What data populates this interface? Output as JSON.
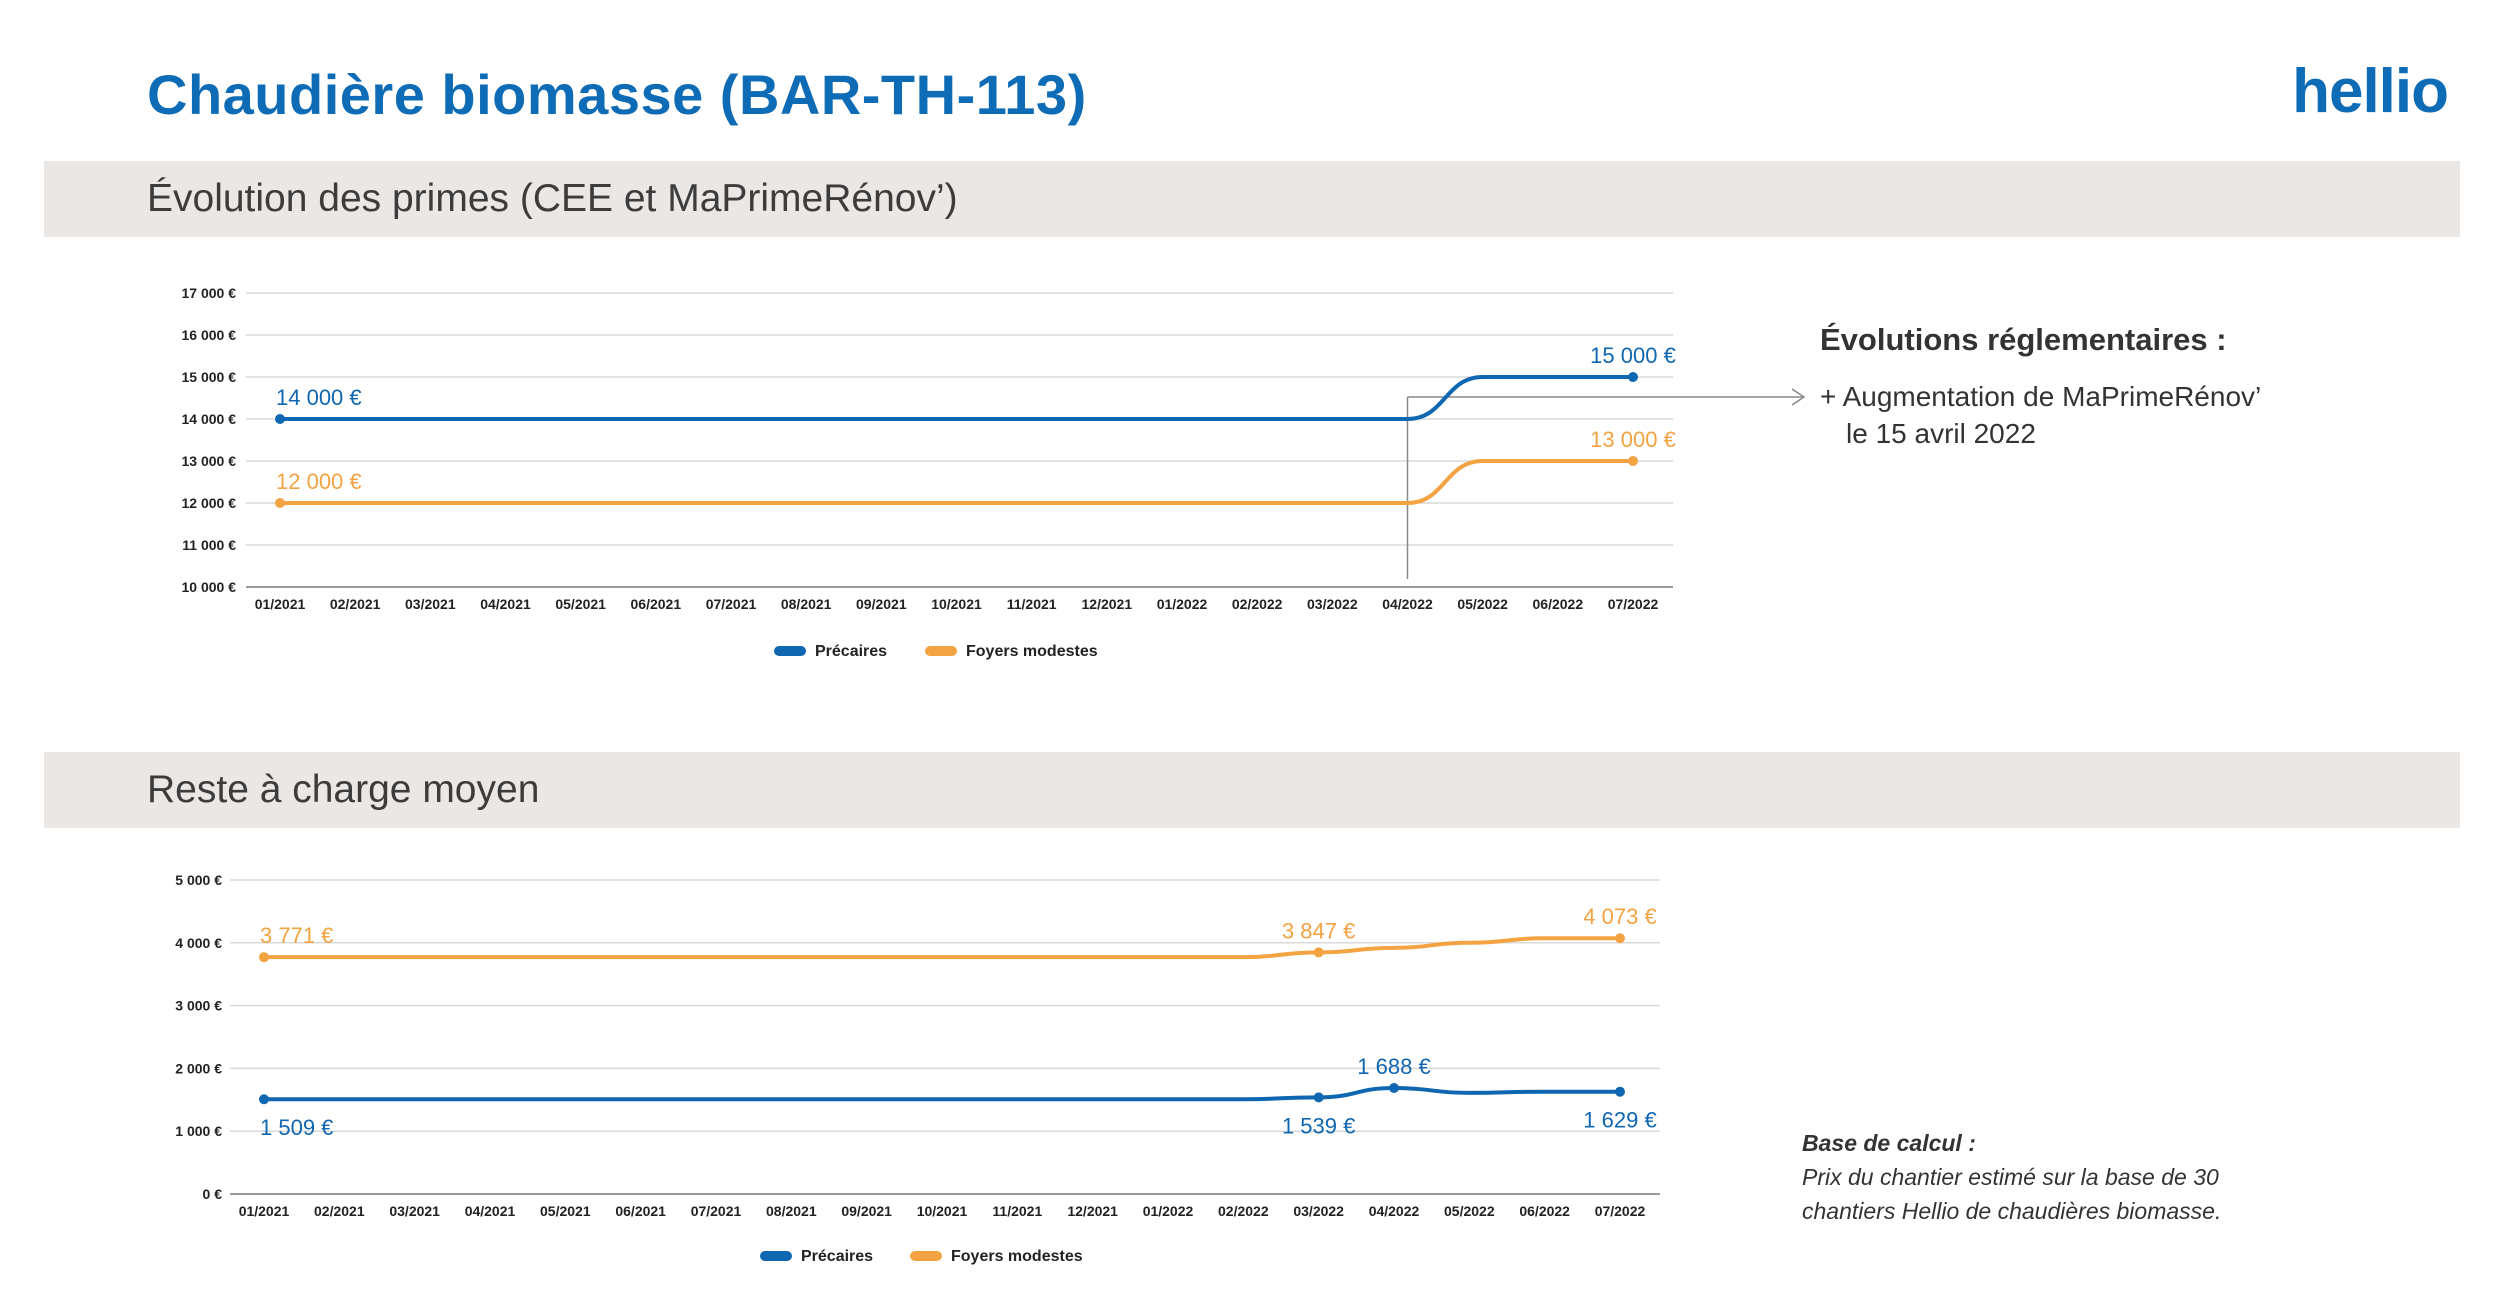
{
  "header": {
    "title": "Chaudière biomasse (BAR-TH-113)",
    "logo": "hellio"
  },
  "sections": [
    {
      "title": "Évolution des primes (CEE et MaPrimeRénov’)"
    },
    {
      "title": "Reste à charge moyen"
    }
  ],
  "annotations": {
    "reg_title": "Évolutions réglementaires :",
    "reg_line1": "+ Augmentation de MaPrimeRénov’",
    "reg_line2": "le 15 avril 2022",
    "base_title": "Base de calcul :",
    "base_line1": "Prix du chantier estimé sur la base de 30",
    "base_line2": "chantiers Hellio de chaudières biomasse."
  },
  "colors": {
    "precaires": "#1067b1",
    "modestes": "#f4a343",
    "title": "#0d6cb5"
  },
  "chart_data": [
    {
      "type": "line",
      "categories": [
        "01/2021",
        "02/2021",
        "03/2021",
        "04/2021",
        "05/2021",
        "06/2021",
        "07/2021",
        "08/2021",
        "09/2021",
        "10/2021",
        "11/2021",
        "12/2021",
        "01/2022",
        "02/2022",
        "03/2022",
        "04/2022",
        "05/2022",
        "06/2022",
        "07/2022"
      ],
      "ylim": [
        10000,
        17000
      ],
      "yticks": [
        10000,
        11000,
        12000,
        13000,
        14000,
        15000,
        16000,
        17000
      ],
      "ytick_labels": [
        "10 000 €",
        "11 000 €",
        "12 000 €",
        "13 000 €",
        "14 000 €",
        "15 000 €",
        "16 000 €",
        "17 000 €"
      ],
      "grid": true,
      "legend": "bottom",
      "series": [
        {
          "name": "Précaires",
          "color": "#1067b1",
          "values": [
            14000,
            14000,
            14000,
            14000,
            14000,
            14000,
            14000,
            14000,
            14000,
            14000,
            14000,
            14000,
            14000,
            14000,
            14000,
            14000,
            15000,
            15000,
            15000
          ],
          "labels": [
            {
              "index": 0,
              "text": "14 000 €",
              "pos": "above"
            },
            {
              "index": 18,
              "text": "15 000 €",
              "pos": "above"
            }
          ],
          "markers": [
            0,
            18
          ]
        },
        {
          "name": "Foyers modestes",
          "color": "#f4a343",
          "values": [
            12000,
            12000,
            12000,
            12000,
            12000,
            12000,
            12000,
            12000,
            12000,
            12000,
            12000,
            12000,
            12000,
            12000,
            12000,
            12000,
            13000,
            13000,
            13000
          ],
          "labels": [
            {
              "index": 0,
              "text": "12 000 €",
              "pos": "above"
            },
            {
              "index": 18,
              "text": "13 000 €",
              "pos": "above"
            }
          ],
          "markers": [
            0,
            18
          ]
        }
      ],
      "event_marker": {
        "category": "04/2022"
      }
    },
    {
      "type": "line",
      "categories": [
        "01/2021",
        "02/2021",
        "03/2021",
        "04/2021",
        "05/2021",
        "06/2021",
        "07/2021",
        "08/2021",
        "09/2021",
        "10/2021",
        "11/2021",
        "12/2021",
        "01/2022",
        "02/2022",
        "03/2022",
        "04/2022",
        "05/2022",
        "06/2022",
        "07/2022"
      ],
      "ylim": [
        0,
        5000
      ],
      "yticks": [
        0,
        1000,
        2000,
        3000,
        4000,
        5000
      ],
      "ytick_labels": [
        "0 €",
        "1 000 €",
        "2 000 €",
        "3 000 €",
        "4 000 €",
        "5 000 €"
      ],
      "grid": true,
      "legend": "bottom",
      "series": [
        {
          "name": "Précaires",
          "color": "#1067b1",
          "values": [
            1509,
            1509,
            1509,
            1509,
            1509,
            1509,
            1509,
            1509,
            1509,
            1509,
            1509,
            1509,
            1509,
            1509,
            1539,
            1688,
            1610,
            1629,
            1629
          ],
          "labels": [
            {
              "index": 0,
              "text": "1 509 €",
              "pos": "below"
            },
            {
              "index": 14,
              "text": "1 539 €",
              "pos": "below"
            },
            {
              "index": 15,
              "text": "1 688 €",
              "pos": "above"
            },
            {
              "index": 18,
              "text": "1 629 €",
              "pos": "below"
            }
          ],
          "markers": [
            0,
            14,
            15,
            18
          ]
        },
        {
          "name": "Foyers modestes",
          "color": "#f4a343",
          "values": [
            3771,
            3771,
            3771,
            3771,
            3771,
            3771,
            3771,
            3771,
            3771,
            3771,
            3771,
            3771,
            3771,
            3771,
            3847,
            3920,
            4000,
            4073,
            4073
          ],
          "labels": [
            {
              "index": 0,
              "text": "3 771 €",
              "pos": "above"
            },
            {
              "index": 14,
              "text": "3 847 €",
              "pos": "above"
            },
            {
              "index": 18,
              "text": "4 073 €",
              "pos": "above"
            }
          ],
          "markers": [
            0,
            14,
            18
          ]
        }
      ]
    }
  ]
}
